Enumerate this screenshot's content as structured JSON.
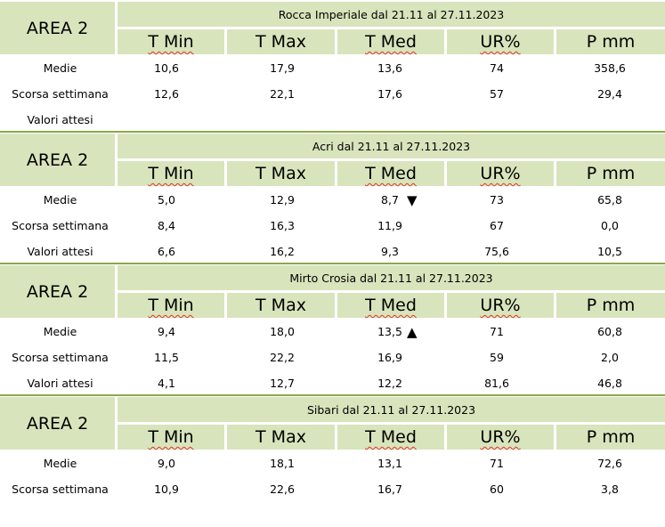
{
  "area_label": "AREA 2",
  "columns": [
    "T Min",
    "T Max",
    "T Med",
    "UR%",
    "P mm"
  ],
  "sections": [
    {
      "title": "Rocca Imperiale  dal 21.11 al 27.11.2023",
      "rows": [
        {
          "label": "Medie",
          "values": [
            "10,6",
            "17,9",
            "13,6",
            "74",
            "358,6"
          ],
          "arrow": ""
        },
        {
          "label": "Scorsa settimana",
          "values": [
            "12,6",
            "22,1",
            "17,6",
            "57",
            "29,4"
          ],
          "arrow": ""
        },
        {
          "label": "Valori attesi",
          "values": [
            "",
            "",
            "",
            "",
            ""
          ],
          "arrow": ""
        }
      ]
    },
    {
      "title": "Acri dal 21.11 al 27.11.2023",
      "rows": [
        {
          "label": "Medie",
          "values": [
            "5,0",
            "12,9",
            "8,7",
            "73",
            "65,8"
          ],
          "arrow": "▼"
        },
        {
          "label": "Scorsa settimana",
          "values": [
            "8,4",
            "16,3",
            "11,9",
            "67",
            "0,0"
          ],
          "arrow": ""
        },
        {
          "label": "Valori attesi",
          "values": [
            "6,6",
            "16,2",
            "9,3",
            "75,6",
            "10,5"
          ],
          "arrow": ""
        }
      ]
    },
    {
      "title": "Mirto Crosia dal 21.11 al 27.11.2023",
      "rows": [
        {
          "label": "Medie",
          "values": [
            "9,4",
            "18,0",
            "13,5",
            "71",
            "60,8"
          ],
          "arrow": "▲"
        },
        {
          "label": "Scorsa settimana",
          "values": [
            "11,5",
            "22,2",
            "16,9",
            "59",
            "2,0"
          ],
          "arrow": ""
        },
        {
          "label": "Valori attesi",
          "values": [
            "4,1",
            "12,7",
            "12,2",
            "81,6",
            "46,8"
          ],
          "arrow": ""
        }
      ]
    },
    {
      "title": "Sibari dal 21.11 al 27.11.2023",
      "rows": [
        {
          "label": "Medie",
          "values": [
            "9,0",
            "18,1",
            "13,1",
            "71",
            "72,6"
          ],
          "arrow": ""
        },
        {
          "label": "Scorsa settimana",
          "values": [
            "10,9",
            "22,6",
            "16,7",
            "60",
            "3,8"
          ],
          "arrow": ""
        }
      ]
    }
  ]
}
